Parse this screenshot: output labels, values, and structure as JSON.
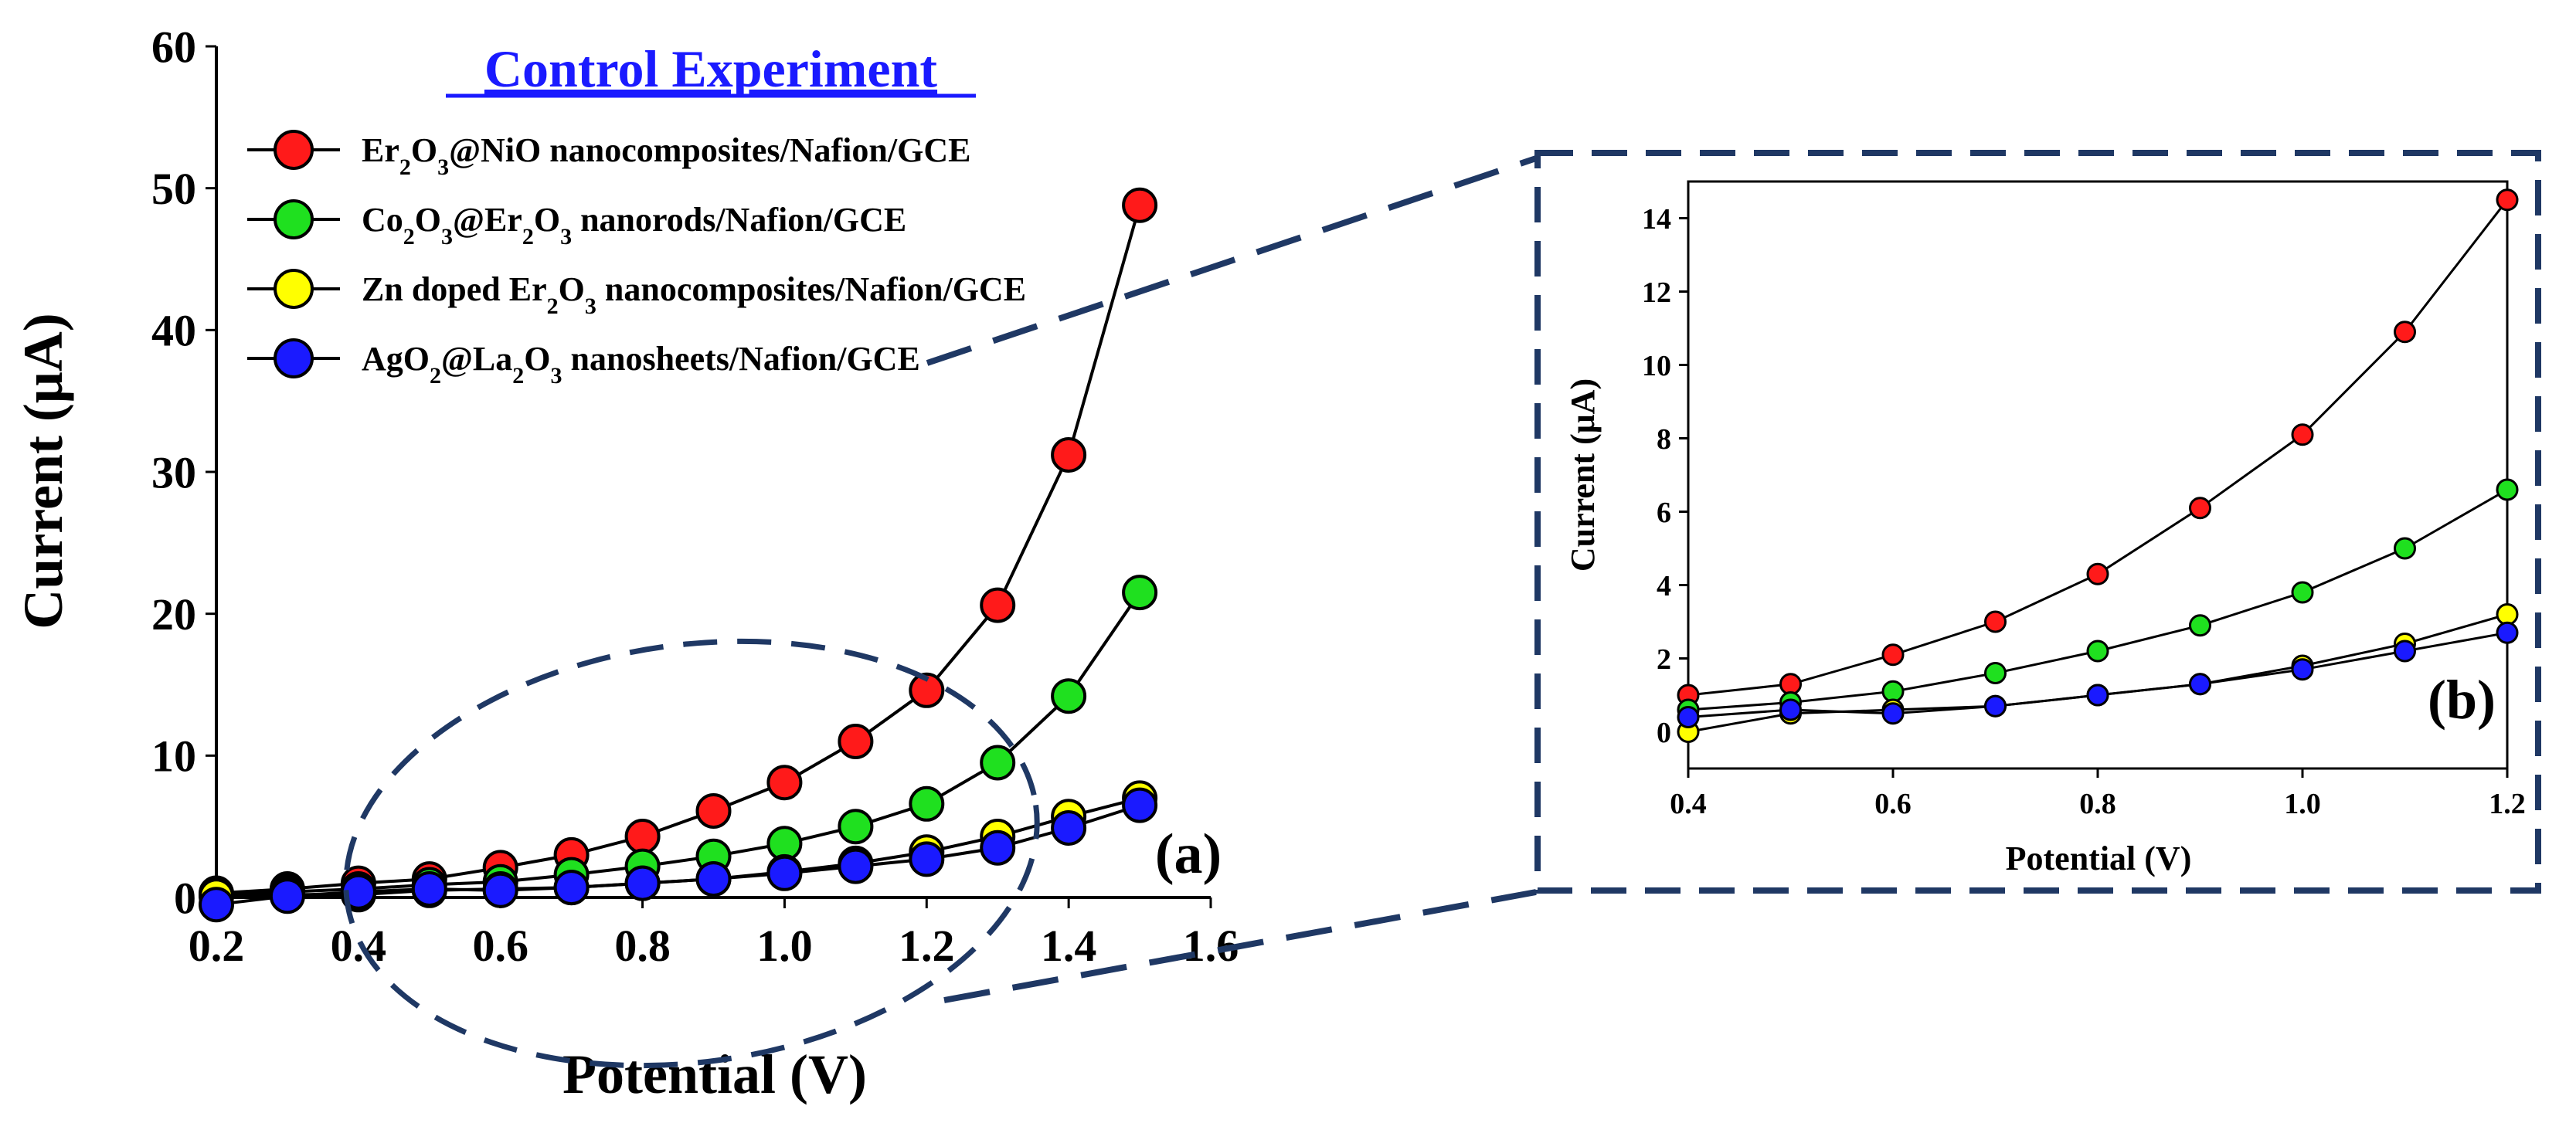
{
  "colors": {
    "red": "#ff1a1a",
    "green": "#1fe01f",
    "yellow": "#ffff00",
    "blue": "#1a1aff",
    "callout": "#1f3864",
    "legend_title": "#1a1aff"
  },
  "chart_data": [
    {
      "type": "line",
      "panel_label": "(a)",
      "title": "Control Experiment",
      "xlabel": "Potential (V)",
      "ylabel": "Current (μA)",
      "xlim": [
        0.2,
        1.6
      ],
      "ylim": [
        0,
        60
      ],
      "xticks": [
        "0.2",
        "0.4",
        "0.6",
        "0.8",
        "1.0",
        "1.2",
        "1.4",
        "1.6"
      ],
      "yticks": [
        "0",
        "10",
        "20",
        "30",
        "40",
        "50",
        "60"
      ],
      "legend_position": "top-left",
      "x": [
        0.2,
        0.3,
        0.4,
        0.5,
        0.6,
        0.7,
        0.8,
        0.9,
        1.0,
        1.1,
        1.2,
        1.3,
        1.4,
        1.5
      ],
      "series": [
        {
          "name_parts": [
            "Er",
            "2",
            "O",
            "3",
            "@NiO nanocomposites/Nafion/GCE"
          ],
          "color": "red",
          "values": [
            0.3,
            0.6,
            1.0,
            1.3,
            2.1,
            3.0,
            4.3,
            6.1,
            8.1,
            11.0,
            14.6,
            20.6,
            31.2,
            48.8
          ]
        },
        {
          "name_parts": [
            "Co",
            "2",
            "O",
            "3",
            "@Er",
            "2",
            "O",
            "3",
            " nanorods/Nafion/GCE"
          ],
          "color": "green",
          "values": [
            0.2,
            0.4,
            0.6,
            0.9,
            1.1,
            1.6,
            2.2,
            2.9,
            3.8,
            5.0,
            6.6,
            9.5,
            14.2,
            21.5
          ]
        },
        {
          "name_parts": [
            "Zn doped Er",
            "2",
            "O",
            "3",
            " nanocomposites/Nafion/GCE"
          ],
          "color": "yellow",
          "values": [
            0.1,
            0.2,
            0.2,
            0.5,
            0.6,
            0.7,
            1.0,
            1.3,
            1.8,
            2.4,
            3.2,
            4.3,
            5.7,
            7.0
          ]
        },
        {
          "name_parts": [
            "AgO",
            "2",
            "@La",
            "2",
            "O",
            "3",
            " nanosheets/Nafion/GCE"
          ],
          "color": "blue",
          "values": [
            -0.5,
            0.1,
            0.4,
            0.6,
            0.5,
            0.7,
            1.0,
            1.3,
            1.7,
            2.2,
            2.7,
            3.5,
            4.9,
            6.5
          ]
        }
      ]
    },
    {
      "type": "line",
      "panel_label": "(b)",
      "xlabel": "Potential (V)",
      "ylabel": "Current (μA)",
      "xlim": [
        0.4,
        1.2
      ],
      "ylim": [
        -1,
        15
      ],
      "xticks": [
        "0.4",
        "0.6",
        "0.8",
        "1.0",
        "1.2"
      ],
      "yticks": [
        "0",
        "2",
        "4",
        "6",
        "8",
        "10",
        "12",
        "14"
      ],
      "x": [
        0.4,
        0.5,
        0.6,
        0.7,
        0.8,
        0.9,
        1.0,
        1.1,
        1.2
      ],
      "series": [
        {
          "color": "red",
          "values": [
            1.0,
            1.3,
            2.1,
            3.0,
            4.3,
            6.1,
            8.1,
            10.9,
            14.5
          ]
        },
        {
          "color": "green",
          "values": [
            0.6,
            0.8,
            1.1,
            1.6,
            2.2,
            2.9,
            3.8,
            5.0,
            6.6
          ]
        },
        {
          "color": "yellow",
          "values": [
            0.0,
            0.5,
            0.6,
            0.7,
            1.0,
            1.3,
            1.8,
            2.4,
            3.2
          ]
        },
        {
          "color": "blue",
          "values": [
            0.4,
            0.6,
            0.5,
            0.7,
            1.0,
            1.3,
            1.7,
            2.2,
            2.7
          ]
        }
      ]
    }
  ]
}
